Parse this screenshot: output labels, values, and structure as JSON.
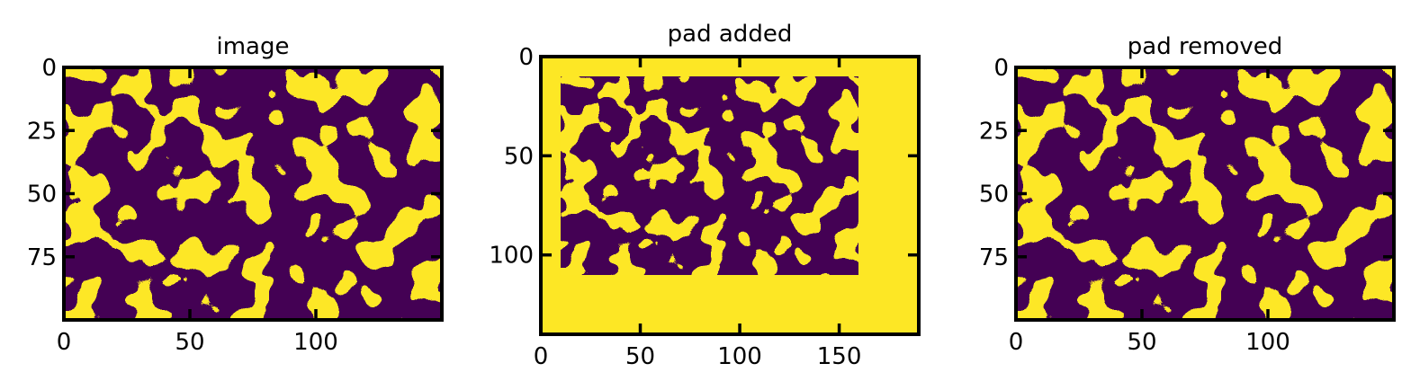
{
  "chart_data": [
    {
      "type": "heatmap",
      "title": "image",
      "colormap": "viridis binary",
      "colors": {
        "low": "#440154",
        "high": "#fde725"
      },
      "xlim": [
        0,
        150
      ],
      "ylim": [
        100,
        0
      ],
      "xticks": [
        0,
        50,
        100
      ],
      "xtick_labels": [
        "0",
        "50",
        "100"
      ],
      "yticks": [
        0,
        25,
        50,
        75
      ],
      "ytick_labels": [
        "0",
        "25",
        "50",
        "75"
      ],
      "grid": false,
      "content": {
        "width": 150,
        "height": 100,
        "pad_left": 0,
        "pad_top": 0,
        "pad_right": 0,
        "pad_bottom": 0
      }
    },
    {
      "type": "heatmap",
      "title": "pad added",
      "colormap": "viridis binary",
      "colors": {
        "low": "#440154",
        "high": "#fde725"
      },
      "xlim": [
        0,
        190
      ],
      "ylim": [
        140,
        0
      ],
      "xticks": [
        0,
        50,
        100,
        150
      ],
      "xtick_labels": [
        "0",
        "50",
        "100",
        "150"
      ],
      "yticks": [
        0,
        50,
        100
      ],
      "ytick_labels": [
        "0",
        "50",
        "100"
      ],
      "grid": false,
      "content": {
        "width": 150,
        "height": 100,
        "pad_left": 10,
        "pad_top": 10,
        "pad_right": 30,
        "pad_bottom": 30
      }
    },
    {
      "type": "heatmap",
      "title": "pad removed",
      "colormap": "viridis binary",
      "colors": {
        "low": "#440154",
        "high": "#fde725"
      },
      "xlim": [
        0,
        150
      ],
      "ylim": [
        100,
        0
      ],
      "xticks": [
        0,
        50,
        100
      ],
      "xtick_labels": [
        "0",
        "50",
        "100"
      ],
      "yticks": [
        0,
        25,
        50,
        75
      ],
      "ytick_labels": [
        "0",
        "25",
        "50",
        "75"
      ],
      "grid": false,
      "content": {
        "width": 150,
        "height": 100,
        "pad_left": 0,
        "pad_top": 0,
        "pad_right": 0,
        "pad_bottom": 0
      }
    }
  ]
}
